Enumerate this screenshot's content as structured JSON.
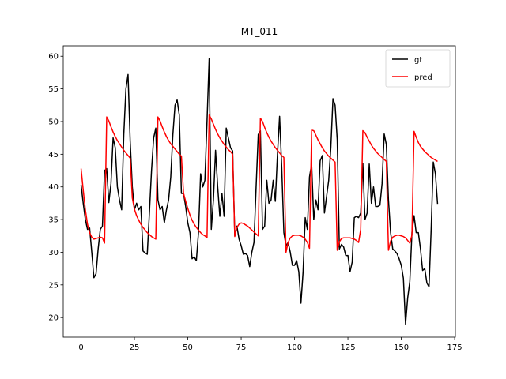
{
  "chart_data": {
    "type": "line",
    "title": "MT_011",
    "x": [
      0,
      1,
      2,
      3,
      4,
      5,
      6,
      7,
      8,
      9,
      10,
      11,
      12,
      13,
      14,
      15,
      16,
      17,
      18,
      19,
      20,
      21,
      22,
      23,
      24,
      25,
      26,
      27,
      28,
      29,
      30,
      31,
      32,
      33,
      34,
      35,
      36,
      37,
      38,
      39,
      40,
      41,
      42,
      43,
      44,
      45,
      46,
      47,
      48,
      49,
      50,
      51,
      52,
      53,
      54,
      55,
      56,
      57,
      58,
      59,
      60,
      61,
      62,
      63,
      64,
      65,
      66,
      67,
      68,
      69,
      70,
      71,
      72,
      73,
      74,
      75,
      76,
      77,
      78,
      79,
      80,
      81,
      82,
      83,
      84,
      85,
      86,
      87,
      88,
      89,
      90,
      91,
      92,
      93,
      94,
      95,
      96,
      97,
      98,
      99,
      100,
      101,
      102,
      103,
      104,
      105,
      106,
      107,
      108,
      109,
      110,
      111,
      112,
      113,
      114,
      115,
      116,
      117,
      118,
      119,
      120,
      121,
      122,
      123,
      124,
      125,
      126,
      127,
      128,
      129,
      130,
      131,
      132,
      133,
      134,
      135,
      136,
      137,
      138,
      139,
      140,
      141,
      142,
      143,
      144,
      145,
      146,
      147,
      148,
      149,
      150,
      151,
      152,
      153,
      154,
      155,
      156,
      157,
      158,
      159,
      160,
      161,
      162,
      163,
      164,
      165,
      166,
      167
    ],
    "series": [
      {
        "name": "gt",
        "color": "#000000",
        "values": [
          40.3,
          37.5,
          35,
          33.5,
          33.7,
          30,
          26.1,
          26.7,
          30.5,
          33.5,
          34,
          42.5,
          42.8,
          37.6,
          40.5,
          47.5,
          46,
          40,
          38,
          36.5,
          48,
          55,
          57.2,
          47,
          40,
          36.5,
          37.5,
          36.5,
          37,
          30.2,
          29.9,
          29.7,
          36,
          42.5,
          47.5,
          49,
          38,
          36.5,
          37,
          34.5,
          36.5,
          38,
          41.5,
          48,
          52.5,
          53.3,
          51,
          39,
          39,
          37,
          34.5,
          33,
          29,
          29.3,
          28.7,
          33,
          42,
          40,
          41,
          50,
          59.6,
          33.5,
          38,
          45.6,
          40,
          35.5,
          39,
          35.5,
          49,
          47.5,
          46,
          45.5,
          32.5,
          34,
          32,
          31,
          29.7,
          29.8,
          29.5,
          27.8,
          30,
          31.5,
          40,
          48,
          48.6,
          33.5,
          34,
          41,
          37.5,
          38,
          41,
          37.8,
          45,
          50.8,
          43,
          33,
          31,
          31.5,
          30,
          28,
          28,
          28.7,
          27,
          22.2,
          27,
          35.3,
          33.5,
          41.5,
          43.5,
          35,
          38,
          36.5,
          44,
          44.8,
          36,
          38.5,
          41,
          46,
          53.5,
          52.5,
          47.2,
          30.5,
          31.2,
          30.8,
          29.5,
          29.5,
          27,
          28.5,
          35.3,
          35.5,
          35.3,
          36,
          43.6,
          35,
          36,
          43.5,
          37.5,
          40,
          37,
          37,
          37.2,
          40.5,
          48.1,
          46.5,
          38,
          33,
          30.5,
          30.2,
          29.8,
          29,
          28,
          26,
          19,
          23,
          25.5,
          33,
          35.6,
          33,
          33,
          30.5,
          27.2,
          27.5,
          25.3,
          24.7,
          33.5,
          43.8,
          42,
          37.4
        ]
      },
      {
        "name": "pred",
        "color": "#ff0000",
        "values": [
          42.8,
          39.5,
          36.5,
          34.3,
          33,
          32.3,
          32.0,
          32.1,
          32.2,
          32.3,
          32.2,
          31.4,
          50.7,
          50.1,
          49.2,
          48.4,
          47.7,
          47.1,
          46.6,
          46.1,
          45.6,
          45.2,
          44.8,
          44.4,
          38.3,
          36.6,
          35.6,
          34.9,
          34.3,
          33.8,
          33.4,
          33.0,
          32.7,
          32.4,
          32.2,
          32.0,
          50.7,
          50.1,
          49.2,
          48.4,
          47.7,
          47.1,
          46.6,
          46.2,
          45.8,
          45.4,
          45.0,
          44.7,
          39,
          37.8,
          36.7,
          35.7,
          34.9,
          34.3,
          33.8,
          33.4,
          33.0,
          32.7,
          32.5,
          32.2,
          51,
          50.4,
          49.6,
          48.8,
          48.1,
          47.5,
          47.0,
          46.5,
          46.1,
          45.7,
          45.4,
          45.0,
          32.4,
          33.8,
          34.3,
          34.5,
          34.4,
          34.2,
          34.0,
          33.7,
          33.4,
          33.1,
          32.8,
          32.5,
          50.5,
          50.0,
          49.1,
          48.3,
          47.6,
          47.0,
          46.5,
          46.0,
          45.6,
          45.2,
          44.8,
          44.5,
          30.0,
          31.5,
          32.2,
          32.5,
          32.6,
          32.6,
          32.6,
          32.5,
          32.3,
          32.0,
          31.5,
          30.6,
          48.7,
          48.6,
          47.9,
          47.2,
          46.6,
          46.0,
          45.5,
          45.1,
          44.7,
          44.4,
          44.1,
          43.8,
          30.3,
          31.6,
          32.1,
          32.2,
          32.2,
          32.2,
          32.2,
          32.1,
          32.0,
          31.8,
          31.5,
          33.5,
          48.6,
          48.3,
          47.6,
          47.0,
          46.4,
          45.9,
          45.5,
          45.1,
          44.8,
          44.5,
          44.2,
          43.9,
          30.3,
          31.7,
          32.3,
          32.5,
          32.6,
          32.6,
          32.5,
          32.4,
          32.2,
          31.8,
          31.4,
          32.6,
          48.5,
          47.6,
          46.8,
          46.2,
          45.8,
          45.4,
          45.1,
          44.8,
          44.5,
          44.3,
          44.1,
          43.9
        ]
      }
    ],
    "xlim": [
      -8.35,
      175.35
    ],
    "xticks": [
      0,
      25,
      50,
      75,
      100,
      125,
      150,
      175
    ],
    "ylim": [
      17.0,
      61.6
    ],
    "yticks": [
      20,
      25,
      30,
      35,
      40,
      45,
      50,
      55,
      60
    ],
    "legend": "upper right"
  }
}
